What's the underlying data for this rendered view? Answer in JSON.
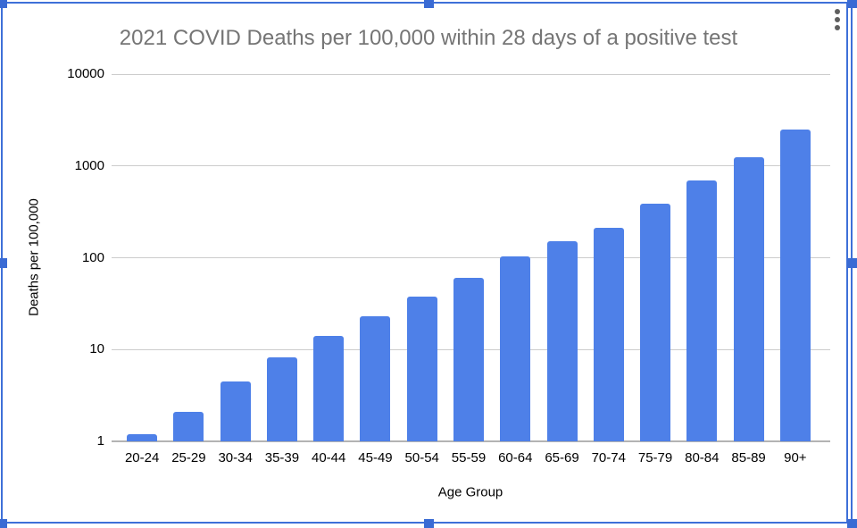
{
  "chart_data": {
    "type": "bar",
    "title": "2021 COVID Deaths per 100,000 within 28 days of a positive test",
    "xlabel": "Age Group",
    "ylabel": "Deaths per 100,000",
    "categories": [
      "20-24",
      "25-29",
      "30-34",
      "35-39",
      "40-44",
      "45-49",
      "50-54",
      "55-59",
      "60-64",
      "65-69",
      "70-74",
      "75-79",
      "80-84",
      "85-89",
      "90+"
    ],
    "values": [
      1.2,
      2.1,
      4.5,
      8.3,
      14,
      23,
      38,
      60,
      103,
      151,
      212,
      390,
      690,
      1250,
      2500
    ],
    "y_scale": "log",
    "y_ticks": [
      1,
      10,
      100,
      1000,
      10000
    ],
    "ylim": [
      1,
      10000
    ],
    "grid": true,
    "legend_position": "none",
    "bar_color": "#4e80e8",
    "title_color": "#757575",
    "gridline_color": "#cccccc",
    "baseline_color": "#b3b3b3",
    "tick_label_color": "#000000"
  },
  "selection": {
    "border_color": "#3e70d8",
    "handle_color": "#3a6bd4",
    "handles": [
      "top-left",
      "top-center",
      "top-right",
      "middle-left",
      "middle-right",
      "bottom-left",
      "bottom-center",
      "bottom-right"
    ]
  },
  "menu": {
    "icon": "kebab-menu",
    "dot_color": "#5f5f5f"
  }
}
